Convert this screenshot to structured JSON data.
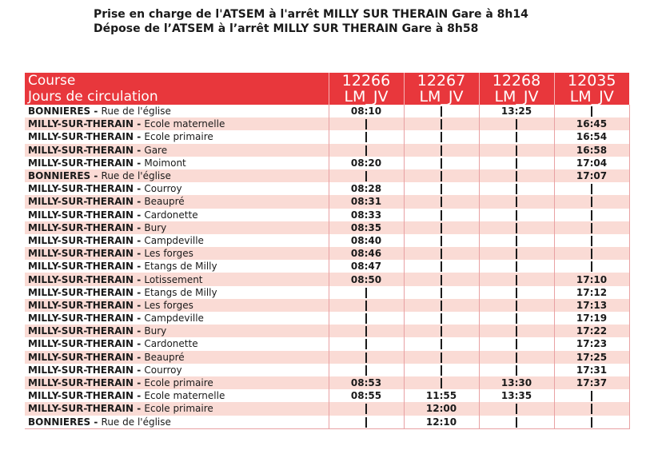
{
  "intro": {
    "line1": "Prise en charge de l'ATSEM à l'arrêt MILLY SUR THERAIN Gare à 8h14",
    "line2": "Dépose de l’ATSEM à l’arrêt MILLY SUR THERAIN Gare à 8h58"
  },
  "header": {
    "course_label": "Course",
    "days_label": "Jours de circulation",
    "runs": [
      {
        "number": "12266",
        "days": "LM_JV"
      },
      {
        "number": "12267",
        "days": "LM_JV"
      },
      {
        "number": "12268",
        "days": "LM_JV"
      },
      {
        "number": "12035",
        "days": "LM_JV"
      }
    ]
  },
  "rows": [
    {
      "town": "BONNIERES -",
      "place": "Rue de l'église",
      "times": [
        "08:10",
        "|",
        "13:25",
        "|"
      ]
    },
    {
      "town": "MILLY-SUR-THERAIN -",
      "place": "Ecole maternelle",
      "times": [
        "|",
        "|",
        "|",
        "16:45"
      ]
    },
    {
      "town": "MILLY-SUR-THERAIN -",
      "place": "Ecole primaire",
      "times": [
        "|",
        "|",
        "|",
        "16:54"
      ]
    },
    {
      "town": "MILLY-SUR-THERAIN -",
      "place": "Gare",
      "times": [
        "|",
        "|",
        "|",
        "16:58"
      ]
    },
    {
      "town": "MILLY-SUR-THERAIN -",
      "place": "Moimont",
      "times": [
        "08:20",
        "|",
        "|",
        "17:04"
      ]
    },
    {
      "town": "BONNIERES -",
      "place": "Rue de l'église",
      "times": [
        "|",
        "|",
        "|",
        "17:07"
      ]
    },
    {
      "town": "MILLY-SUR-THERAIN -",
      "place": "Courroy",
      "times": [
        "08:28",
        "|",
        "|",
        "|"
      ]
    },
    {
      "town": "MILLY-SUR-THERAIN -",
      "place": "Beaupré",
      "times": [
        "08:31",
        "|",
        "|",
        "|"
      ]
    },
    {
      "town": "MILLY-SUR-THERAIN -",
      "place": "Cardonette",
      "times": [
        "08:33",
        "|",
        "|",
        "|"
      ]
    },
    {
      "town": "MILLY-SUR-THERAIN -",
      "place": "Bury",
      "times": [
        "08:35",
        "|",
        "|",
        "|"
      ]
    },
    {
      "town": "MILLY-SUR-THERAIN -",
      "place": "Campdeville",
      "times": [
        "08:40",
        "|",
        "|",
        "|"
      ]
    },
    {
      "town": "MILLY-SUR-THERAIN -",
      "place": "Les forges",
      "times": [
        "08:46",
        "|",
        "|",
        "|"
      ]
    },
    {
      "town": "MILLY-SUR-THERAIN -",
      "place": "Etangs de Milly",
      "times": [
        "08:47",
        "|",
        "|",
        "|"
      ]
    },
    {
      "town": "MILLY-SUR-THERAIN -",
      "place": "Lotissement",
      "times": [
        "08:50",
        "|",
        "|",
        "17:10"
      ]
    },
    {
      "town": "MILLY-SUR-THERAIN -",
      "place": "Etangs de Milly",
      "times": [
        "|",
        "|",
        "|",
        "17:12"
      ]
    },
    {
      "town": "MILLY-SUR-THERAIN -",
      "place": "Les forges",
      "times": [
        "|",
        "|",
        "|",
        "17:13"
      ]
    },
    {
      "town": "MILLY-SUR-THERAIN -",
      "place": "Campdeville",
      "times": [
        "|",
        "|",
        "|",
        "17:19"
      ]
    },
    {
      "town": "MILLY-SUR-THERAIN -",
      "place": "Bury",
      "times": [
        "|",
        "|",
        "|",
        "17:22"
      ]
    },
    {
      "town": "MILLY-SUR-THERAIN -",
      "place": "Cardonette",
      "times": [
        "|",
        "|",
        "|",
        "17:23"
      ]
    },
    {
      "town": "MILLY-SUR-THERAIN -",
      "place": "Beaupré",
      "times": [
        "|",
        "|",
        "|",
        "17:25"
      ]
    },
    {
      "town": "MILLY-SUR-THERAIN -",
      "place": "Courroy",
      "times": [
        "|",
        "|",
        "|",
        "17:31"
      ]
    },
    {
      "town": "MILLY-SUR-THERAIN -",
      "place": "Ecole primaire",
      "times": [
        "08:53",
        "|",
        "13:30",
        "17:37"
      ]
    },
    {
      "town": "MILLY-SUR-THERAIN -",
      "place": "Ecole maternelle",
      "times": [
        "08:55",
        "11:55",
        "13:35",
        "|"
      ]
    },
    {
      "town": "MILLY-SUR-THERAIN -",
      "place": "Ecole primaire",
      "times": [
        "|",
        "12:00",
        "|",
        "|"
      ]
    },
    {
      "town": "BONNIERES -",
      "place": "Rue de l'église",
      "times": [
        "|",
        "12:10",
        "|",
        "|"
      ]
    }
  ]
}
